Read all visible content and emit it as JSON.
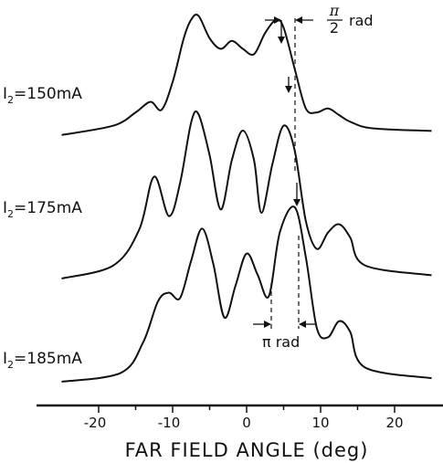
{
  "chart_data": {
    "type": "line",
    "title": "",
    "xlabel": "FAR FIELD ANGLE (deg)",
    "ylabel": "",
    "xlim": [
      -25,
      25
    ],
    "xticks": [
      "-20",
      "-10",
      "0",
      "10",
      "20"
    ],
    "grid": false,
    "series": [
      {
        "name_prefix": "I",
        "name_sub": "2",
        "name_suffix": "=150mA",
        "x": [
          -25,
          -18,
          -15,
          -13,
          -11.5,
          -10,
          -8.5,
          -7.5,
          -6.5,
          -5,
          -3.5,
          -2,
          -0.5,
          1,
          2.5,
          4,
          5,
          6.5,
          8,
          9.5,
          11,
          12.5,
          14,
          17,
          25
        ],
        "y": [
          0.05,
          0.12,
          0.22,
          0.3,
          0.24,
          0.45,
          0.78,
          0.92,
          0.95,
          0.78,
          0.7,
          0.76,
          0.7,
          0.66,
          0.82,
          0.92,
          0.86,
          0.55,
          0.25,
          0.22,
          0.25,
          0.2,
          0.15,
          0.1,
          0.08
        ]
      },
      {
        "name_prefix": "I",
        "name_sub": "2",
        "name_suffix": "=175mA",
        "x": [
          -25,
          -18,
          -14.5,
          -12.5,
          -10.5,
          -9,
          -7.5,
          -6.5,
          -5,
          -3.5,
          -2,
          -0.5,
          1,
          2,
          3.5,
          5,
          6.5,
          8,
          9.5,
          11,
          12.5,
          14,
          16,
          25
        ],
        "y": [
          0.0,
          0.08,
          0.3,
          0.62,
          0.38,
          0.58,
          0.95,
          1.0,
          0.75,
          0.42,
          0.72,
          0.9,
          0.72,
          0.4,
          0.7,
          0.93,
          0.78,
          0.35,
          0.18,
          0.28,
          0.33,
          0.25,
          0.08,
          0.02
        ]
      },
      {
        "name_prefix": "I",
        "name_sub": "2",
        "name_suffix": "=185mA",
        "x": [
          -25,
          -17,
          -14,
          -12,
          -10.5,
          -9,
          -7.5,
          -6,
          -4.5,
          -3,
          -1.5,
          0,
          1.5,
          3,
          4.5,
          6.5,
          8,
          9.5,
          11,
          12.5,
          14,
          16,
          25
        ],
        "y": [
          0.0,
          0.05,
          0.22,
          0.45,
          0.5,
          0.47,
          0.68,
          0.86,
          0.66,
          0.36,
          0.54,
          0.72,
          0.6,
          0.48,
          0.84,
          0.98,
          0.7,
          0.3,
          0.25,
          0.34,
          0.28,
          0.08,
          0.02
        ]
      }
    ],
    "annotations": [
      {
        "numerator": "π",
        "denominator": "2",
        "text": "rad"
      },
      {
        "text": "π rad"
      }
    ]
  }
}
